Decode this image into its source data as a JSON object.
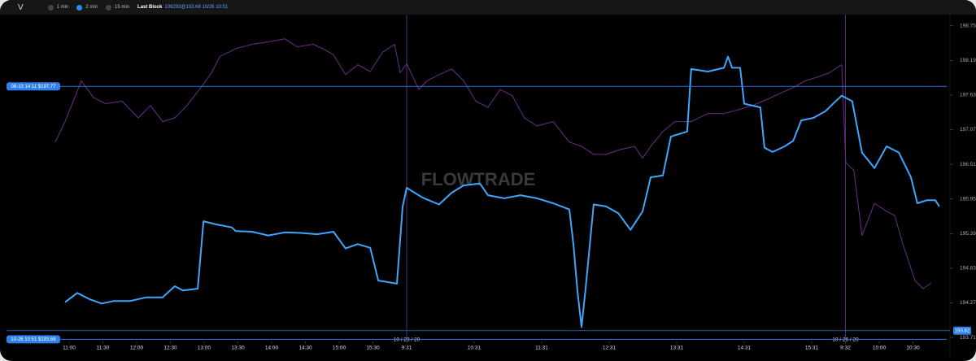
{
  "toolbar": {
    "symbol": "V",
    "intervals": [
      "1 min",
      "2 min",
      "15 min"
    ],
    "selected_interval": 1,
    "last_block_label": "Last Block",
    "last_block_value": "109293@193.68 10/26 10:51"
  },
  "chart_data": {
    "type": "line",
    "watermark": "FLOWTRADE",
    "xlim": [
      -0.41,
      26.0
    ],
    "ylim": [
      193.58,
      198.93
    ],
    "xticks": [
      {
        "value": 0,
        "label": "11:00"
      },
      {
        "value": 1,
        "label": "11:30"
      },
      {
        "value": 2,
        "label": "12:00"
      },
      {
        "value": 3,
        "label": "12:30"
      },
      {
        "value": 4,
        "label": "13:00"
      },
      {
        "value": 5,
        "label": "13:30"
      },
      {
        "value": 6,
        "label": "14:00"
      },
      {
        "value": 7,
        "label": "14:30"
      },
      {
        "value": 8,
        "label": "15:00"
      },
      {
        "value": 9,
        "label": "15:30"
      },
      {
        "value": 10,
        "label": "9:31"
      },
      {
        "value": 12,
        "label": "10:31"
      },
      {
        "value": 14,
        "label": "11:31"
      },
      {
        "value": 16,
        "label": "12:31"
      },
      {
        "value": 18,
        "label": "13:31"
      },
      {
        "value": 20,
        "label": "14:31"
      },
      {
        "value": 22,
        "label": "15:31"
      },
      {
        "value": 23,
        "label": "9:32"
      },
      {
        "value": 24,
        "label": "10:00"
      },
      {
        "value": 25,
        "label": "10:30"
      }
    ],
    "date_labels": [
      {
        "value": 10,
        "label": "10 / 23 / 20"
      },
      {
        "value": 23,
        "label": "10 / 26 / 20"
      }
    ],
    "yticks": [
      198.75,
      198.19,
      197.63,
      197.07,
      196.51,
      195.95,
      195.39,
      194.83,
      194.27,
      193.71
    ],
    "levels": [
      {
        "label": "08-13 14:11 $197.77",
        "value": 197.77
      },
      {
        "label": "10-26 10:51 $193.68",
        "value": 193.68
      }
    ],
    "last_price": 193.82,
    "series": [
      {
        "color": "#6a2d8f",
        "x": [
          -0.41,
          -0.12,
          0.36,
          0.72,
          1.08,
          1.57,
          2.05,
          2.41,
          2.77,
          3.13,
          3.49,
          3.86,
          4.22,
          4.46,
          4.94,
          5.42,
          5.9,
          6.39,
          6.75,
          7.23,
          7.59,
          7.83,
          8.19,
          8.55,
          8.92,
          9.28,
          9.64,
          9.81,
          10.0,
          10.36,
          10.6,
          10.96,
          11.33,
          11.69,
          12.05,
          12.41,
          12.77,
          13.13,
          13.49,
          13.86,
          14.34,
          14.82,
          15.18,
          15.54,
          15.9,
          16.27,
          16.75,
          16.99,
          17.23,
          17.59,
          17.95,
          18.43,
          18.92,
          19.4,
          19.88,
          20.24,
          20.72,
          21.08,
          21.45,
          21.81,
          22.17,
          22.53,
          22.89,
          23.01,
          23.25,
          23.49,
          23.86,
          24.22,
          24.46,
          24.7,
          25.06,
          25.3,
          25.54
        ],
        "values": [
          196.87,
          197.2,
          197.86,
          197.59,
          197.49,
          197.53,
          197.26,
          197.46,
          197.2,
          197.26,
          197.46,
          197.72,
          197.99,
          198.25,
          198.38,
          198.45,
          198.49,
          198.54,
          198.41,
          198.45,
          198.36,
          198.28,
          197.96,
          198.12,
          198.01,
          198.32,
          198.45,
          197.99,
          198.14,
          197.72,
          197.86,
          197.96,
          198.05,
          197.86,
          197.53,
          197.43,
          197.72,
          197.62,
          197.26,
          197.13,
          197.2,
          196.87,
          196.8,
          196.67,
          196.67,
          196.74,
          196.8,
          196.61,
          196.8,
          197.04,
          197.2,
          197.2,
          197.33,
          197.33,
          197.4,
          197.46,
          197.57,
          197.66,
          197.75,
          197.86,
          197.92,
          197.99,
          198.12,
          196.54,
          196.41,
          195.36,
          195.88,
          195.75,
          195.68,
          195.22,
          194.63,
          194.5,
          194.59
        ]
      },
      {
        "color": "#3ea6ff",
        "x": [
          -0.12,
          0.24,
          0.6,
          0.96,
          1.33,
          1.81,
          2.29,
          2.77,
          3.13,
          3.37,
          3.81,
          3.98,
          4.34,
          4.82,
          4.94,
          5.42,
          5.9,
          6.39,
          6.87,
          7.35,
          7.83,
          8.19,
          8.55,
          8.92,
          9.16,
          9.4,
          9.71,
          9.88,
          10.0,
          10.48,
          10.96,
          11.33,
          11.69,
          12.17,
          12.41,
          12.89,
          13.37,
          13.86,
          14.34,
          14.82,
          14.94,
          15.06,
          15.18,
          15.3,
          15.54,
          15.9,
          16.27,
          16.63,
          16.99,
          17.23,
          17.59,
          17.83,
          18.31,
          18.43,
          18.92,
          19.4,
          19.52,
          19.64,
          19.88,
          20.0,
          20.48,
          20.6,
          20.84,
          21.2,
          21.45,
          21.69,
          22.05,
          22.41,
          22.65,
          22.89,
          23.2,
          23.49,
          23.86,
          24.22,
          24.58,
          24.94,
          25.13,
          25.42,
          25.66,
          25.78
        ],
        "values": [
          194.28,
          194.43,
          194.33,
          194.26,
          194.3,
          194.3,
          194.36,
          194.36,
          194.54,
          194.47,
          194.5,
          195.59,
          195.54,
          195.49,
          195.43,
          195.42,
          195.36,
          195.41,
          195.4,
          195.38,
          195.42,
          195.15,
          195.22,
          195.16,
          194.63,
          194.61,
          194.58,
          195.82,
          196.13,
          195.97,
          195.86,
          196.05,
          196.17,
          196.2,
          196.01,
          195.96,
          196.01,
          195.96,
          195.88,
          195.78,
          195.22,
          194.46,
          193.88,
          194.5,
          195.86,
          195.83,
          195.72,
          195.45,
          195.75,
          196.3,
          196.33,
          196.96,
          197.04,
          198.05,
          198.01,
          198.07,
          198.25,
          198.07,
          198.07,
          197.49,
          197.43,
          196.78,
          196.71,
          196.8,
          196.89,
          197.22,
          197.26,
          197.37,
          197.5,
          197.62,
          197.53,
          196.7,
          196.45,
          196.8,
          196.7,
          196.3,
          195.88,
          195.93,
          195.93,
          195.83
        ]
      }
    ]
  }
}
